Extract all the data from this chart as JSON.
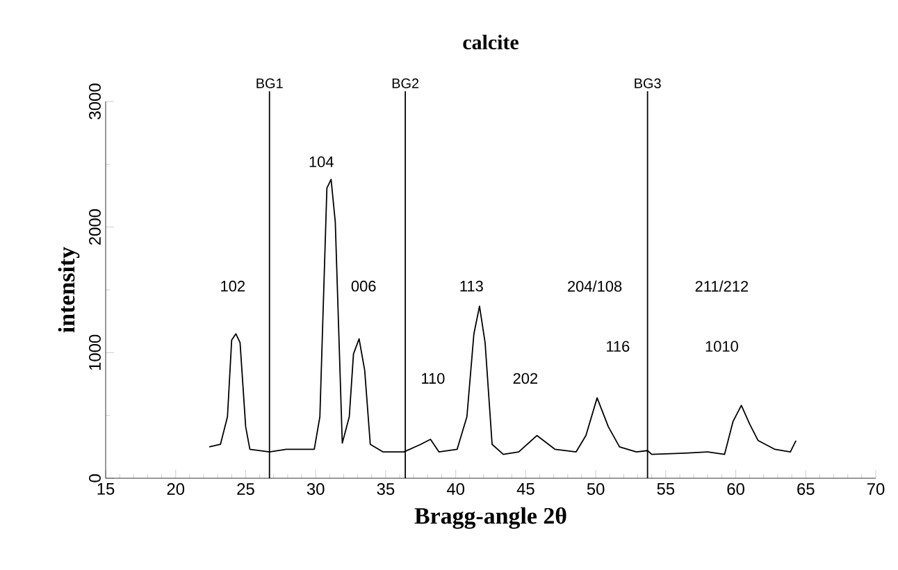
{
  "chart_data": {
    "type": "line",
    "title": "calcite",
    "xlabel": "Bragg-angle 2θ",
    "ylabel": "intensity",
    "xlim": [
      15,
      70
    ],
    "xticks": [
      15,
      20,
      25,
      30,
      35,
      40,
      45,
      50,
      55,
      60,
      65,
      70
    ],
    "ylim": [
      0,
      3000
    ],
    "yticks": [
      0,
      1000,
      2000,
      3000
    ],
    "series": [
      {
        "color": "#000000",
        "x": [
          22.4,
          23.2,
          23.7,
          24.0,
          24.3,
          24.6,
          25.0,
          25.3,
          26.7,
          27.9,
          29.9,
          30.3,
          30.8,
          31.1,
          31.4,
          31.9,
          32.4,
          32.7,
          33.1,
          33.5,
          33.9,
          34.8,
          36.3,
          37.5,
          38.2,
          38.8,
          40.1,
          40.8,
          41.3,
          41.7,
          42.1,
          42.6,
          43.4,
          44.5,
          45.8,
          47.1,
          48.6,
          49.3,
          50.1,
          50.9,
          51.7,
          52.9,
          53.7,
          54.0,
          56.4,
          58.0,
          59.2,
          59.8,
          60.4,
          61.0,
          61.6,
          62.8,
          63.9,
          64.3
        ],
        "values": [
          250,
          270,
          490,
          1100,
          1150,
          1080,
          410,
          230,
          210,
          230,
          230,
          490,
          2310,
          2380,
          2040,
          280,
          490,
          990,
          1110,
          860,
          270,
          210,
          210,
          270,
          310,
          210,
          230,
          490,
          1150,
          1370,
          1080,
          270,
          190,
          210,
          340,
          230,
          210,
          340,
          640,
          410,
          250,
          210,
          220,
          190,
          200,
          210,
          190,
          450,
          580,
          430,
          300,
          230,
          210,
          300
        ]
      }
    ],
    "ref_lines": [
      {
        "axis": "x",
        "value": 26.7,
        "label": "BG1"
      },
      {
        "axis": "x",
        "value": 36.4,
        "label": "BG2"
      },
      {
        "axis": "x",
        "value": 53.7,
        "label": "BG3"
      }
    ],
    "annotations": [
      "102",
      "104",
      "006",
      "110",
      "113",
      "202",
      "204/108",
      "116",
      "211/212",
      "1010"
    ]
  }
}
